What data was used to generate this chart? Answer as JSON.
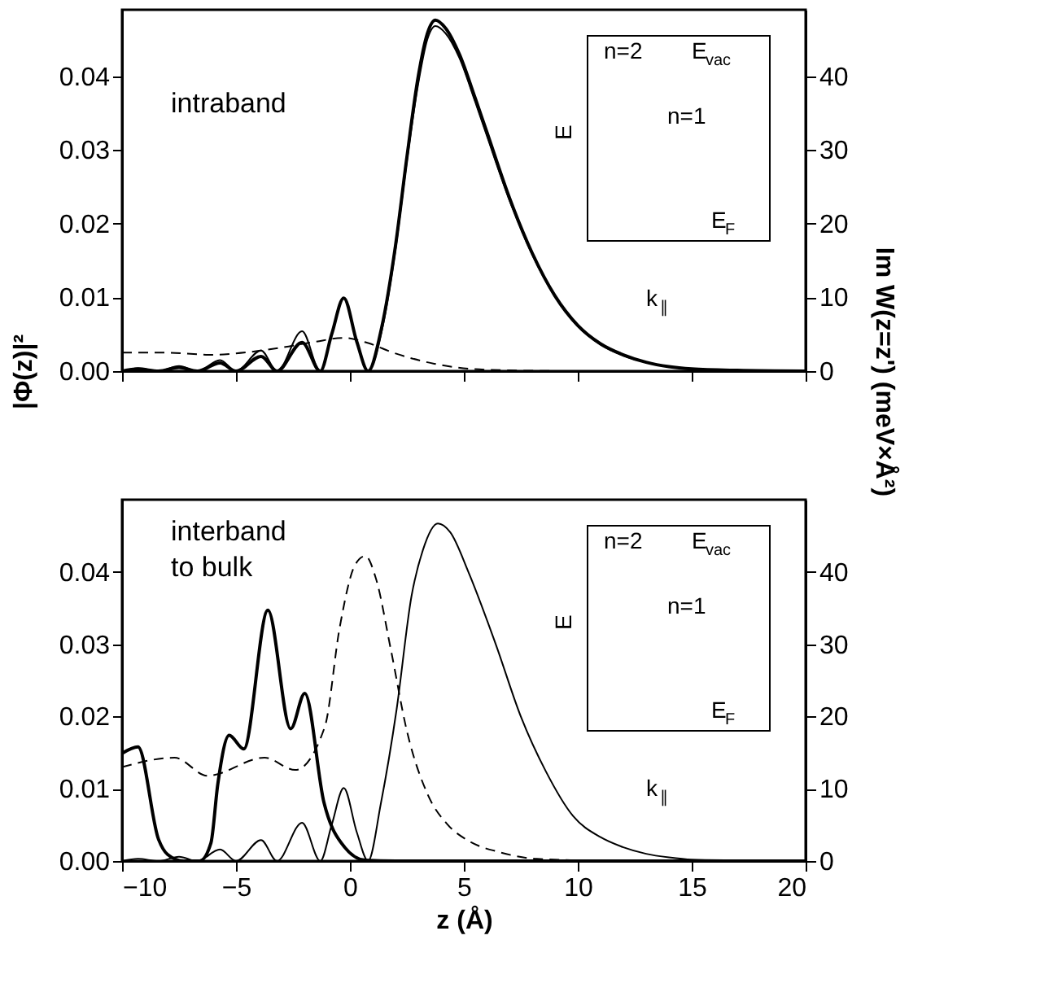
{
  "chart_data": [
    {
      "type": "line",
      "ylabel": "|Φ(z)|²",
      "y2label": "Im W(z=z') (meV×Å²)",
      "xlim": [
        -10,
        20
      ],
      "xticks": [
        -10,
        -5,
        0,
        5,
        10,
        15,
        20
      ],
      "ylim": [
        0,
        0.049
      ],
      "yticks": [
        {
          "value": 0,
          "label": "0.00"
        },
        0.01,
        0.02,
        0.03,
        0.04
      ],
      "y2lim": [
        0,
        49
      ],
      "y2ticks": [
        0,
        10,
        20,
        30,
        40
      ],
      "tick_labels": "y",
      "grid": false,
      "annotations": [
        "intraband",
        "n=2",
        "E$_{vac}$",
        "n=1",
        "E",
        "E$_{F}$",
        "k$_{∥}$"
      ],
      "series": [
        {
          "color": "#000000",
          "line_style": "solid",
          "x": [
            -10,
            -9.3,
            -8.4,
            -7.5,
            -6.7,
            -5.7,
            -5.0,
            -3.9,
            -3.2,
            -2.1,
            -1.3,
            -0.8,
            -0.27,
            0.3,
            0.8,
            1.4,
            2.0,
            2.5,
            3.0,
            3.4,
            3.75,
            4.2,
            4.8,
            5.5,
            6.0,
            7.0,
            8.0,
            9.0,
            10.0,
            11.0,
            12.0,
            13.0,
            14.0,
            15.0,
            17.0,
            20.0
          ],
          "values": [
            0,
            0.0003,
            0,
            0.0005,
            0,
            0.0011,
            0,
            0.002,
            0,
            0.0039,
            0,
            0.005,
            0.0099,
            0.004,
            0,
            0.006,
            0.017,
            0.029,
            0.04,
            0.0458,
            0.0476,
            0.0465,
            0.043,
            0.037,
            0.0325,
            0.0235,
            0.016,
            0.0102,
            0.0062,
            0.0037,
            0.0022,
            0.0012,
            0.0006,
            0.0003,
            0.0001,
            0
          ]
        },
        {
          "color": "#000000",
          "line_style": "solid",
          "x": [
            -10,
            -9.3,
            -8.4,
            -7.5,
            -6.7,
            -5.7,
            -5.0,
            -3.9,
            -3.2,
            -2.1,
            -1.3,
            -0.8,
            -0.27,
            0.3,
            0.8,
            1.4,
            2.0,
            2.5,
            3.0,
            3.4,
            3.75,
            4.2,
            4.8,
            5.5,
            6.0,
            7.0,
            8.0,
            9.0,
            10.0,
            11.0,
            12.0,
            13.0,
            14.0,
            15.0,
            17.0,
            20.0
          ],
          "values": [
            0,
            0.0004,
            0,
            0.0007,
            0,
            0.0015,
            0,
            0.0028,
            0,
            0.0054,
            0,
            0.005,
            0.0099,
            0.004,
            0,
            0.0055,
            0.0165,
            0.0285,
            0.039,
            0.045,
            0.0468,
            0.0458,
            0.0425,
            0.0365,
            0.032,
            0.0232,
            0.0158,
            0.0101,
            0.0061,
            0.0036,
            0.0021,
            0.0012,
            0.0006,
            0.0003,
            0.0001,
            0
          ]
        },
        {
          "color": "#000000",
          "line_style": "dashed",
          "axis": "y2",
          "x": [
            -10,
            -8,
            -6,
            -5,
            -3,
            -1.5,
            -0.27,
            0.8,
            1.9,
            3.7,
            5.3,
            7,
            10,
            20
          ],
          "values": [
            2.5,
            2.5,
            2.2,
            2.4,
            3.2,
            4.0,
            4.5,
            3.8,
            2.5,
            1.0,
            0.3,
            0.1,
            0,
            0
          ]
        }
      ]
    },
    {
      "type": "line",
      "xlabel": "z (Å)",
      "xlim": [
        -10,
        20
      ],
      "xticks": [
        -10,
        -5,
        0,
        5,
        10,
        15,
        20
      ],
      "ylim": [
        0,
        0.05
      ],
      "yticks": [
        {
          "value": 0,
          "label": "0.00"
        },
        0.01,
        0.02,
        0.03,
        0.04
      ],
      "y2lim": [
        0,
        50
      ],
      "y2ticks": [
        0,
        10,
        20,
        30,
        40
      ],
      "grid": false,
      "annotations": [
        "interband\nto bulk",
        "n=2",
        "E$_{vac}$",
        "n=1",
        "E",
        "E$_{F}$",
        "k$_{∥}$"
      ],
      "series": [
        {
          "color": "#000000",
          "line_style": "solid",
          "x": [
            -10,
            -9.3,
            -8.4,
            -8,
            -7.3,
            -6.6,
            -6.1,
            -5.8,
            -5.3,
            -4.66,
            -3.6,
            -2.6,
            -1.98,
            -1.14,
            -0.23,
            0.68,
            2,
            20
          ],
          "values": [
            0.0149,
            0.0158,
            0.003,
            0.0009,
            0,
            0,
            0.0025,
            0.0106,
            0.0174,
            0.0155,
            0.0347,
            0.0183,
            0.0232,
            0.0081,
            0.0019,
            0.0001,
            0,
            0
          ]
        },
        {
          "color": "#000000",
          "line_style": "solid",
          "x": [
            -10,
            -9.3,
            -8.4,
            -7.5,
            -6.7,
            -5.7,
            -5.0,
            -3.9,
            -3.2,
            -2.1,
            -1.3,
            -0.8,
            -0.27,
            0.3,
            0.8,
            1.36,
            2.05,
            2.7,
            3.2,
            3.86,
            4.4,
            5.2,
            6.4,
            7.5,
            8.6,
            9.8,
            11,
            12,
            13,
            14,
            15,
            17,
            20
          ],
          "values": [
            0,
            0.0003,
            0,
            0.0006,
            0,
            0.0016,
            0,
            0.0029,
            0,
            0.0053,
            0,
            0.005,
            0.0101,
            0.004,
            0,
            0.008,
            0.021,
            0.0366,
            0.043,
            0.0467,
            0.0455,
            0.04,
            0.03,
            0.02,
            0.0124,
            0.0062,
            0.0033,
            0.0019,
            0.001,
            0.0005,
            0.0002,
            0.0001,
            0
          ]
        },
        {
          "color": "#000000",
          "line_style": "dashed",
          "axis": "y2",
          "x": [
            -10,
            -7.7,
            -6.25,
            -3.75,
            -2.4,
            -1.1,
            -0.45,
            0.23,
            0.68,
            1.14,
            1.8,
            2.5,
            3.4,
            4.3,
            5.2,
            6.6,
            8.2,
            12,
            20
          ],
          "values": [
            13.0,
            14.3,
            11.8,
            14.3,
            12.6,
            18.6,
            32.3,
            41.0,
            42.2,
            39.1,
            29.2,
            18.0,
            9.3,
            5.0,
            2.8,
            1.2,
            0.3,
            0,
            0
          ]
        }
      ]
    }
  ]
}
